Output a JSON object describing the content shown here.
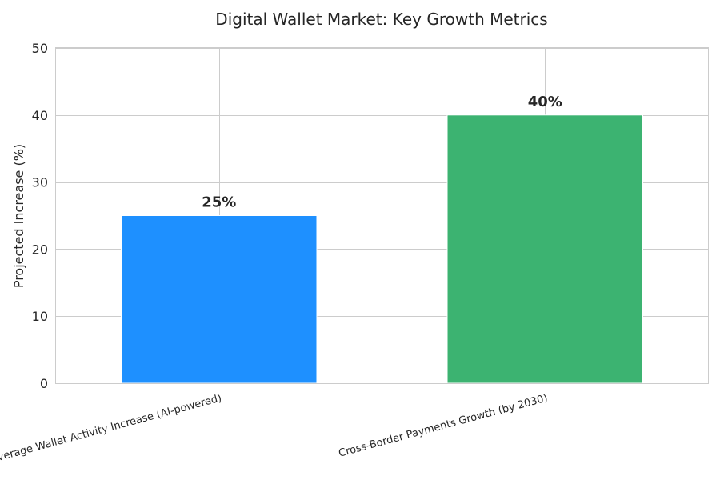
{
  "chart_data": {
    "type": "bar",
    "title": "Digital Wallet Market: Key Growth Metrics",
    "ylabel": "Projected Increase (%)",
    "xlabel": "",
    "categories": [
      "Average Wallet Activity Increase (AI-powered)",
      "Cross-Border Payments Growth (by 2030)"
    ],
    "values": [
      25,
      40
    ],
    "value_labels": [
      "25%",
      "40%"
    ],
    "colors": [
      "#1E90FF",
      "#3CB371"
    ],
    "ylim": [
      0,
      50
    ],
    "yticks": [
      0,
      10,
      20,
      30,
      40,
      50
    ],
    "grid": true,
    "legend": "none"
  }
}
